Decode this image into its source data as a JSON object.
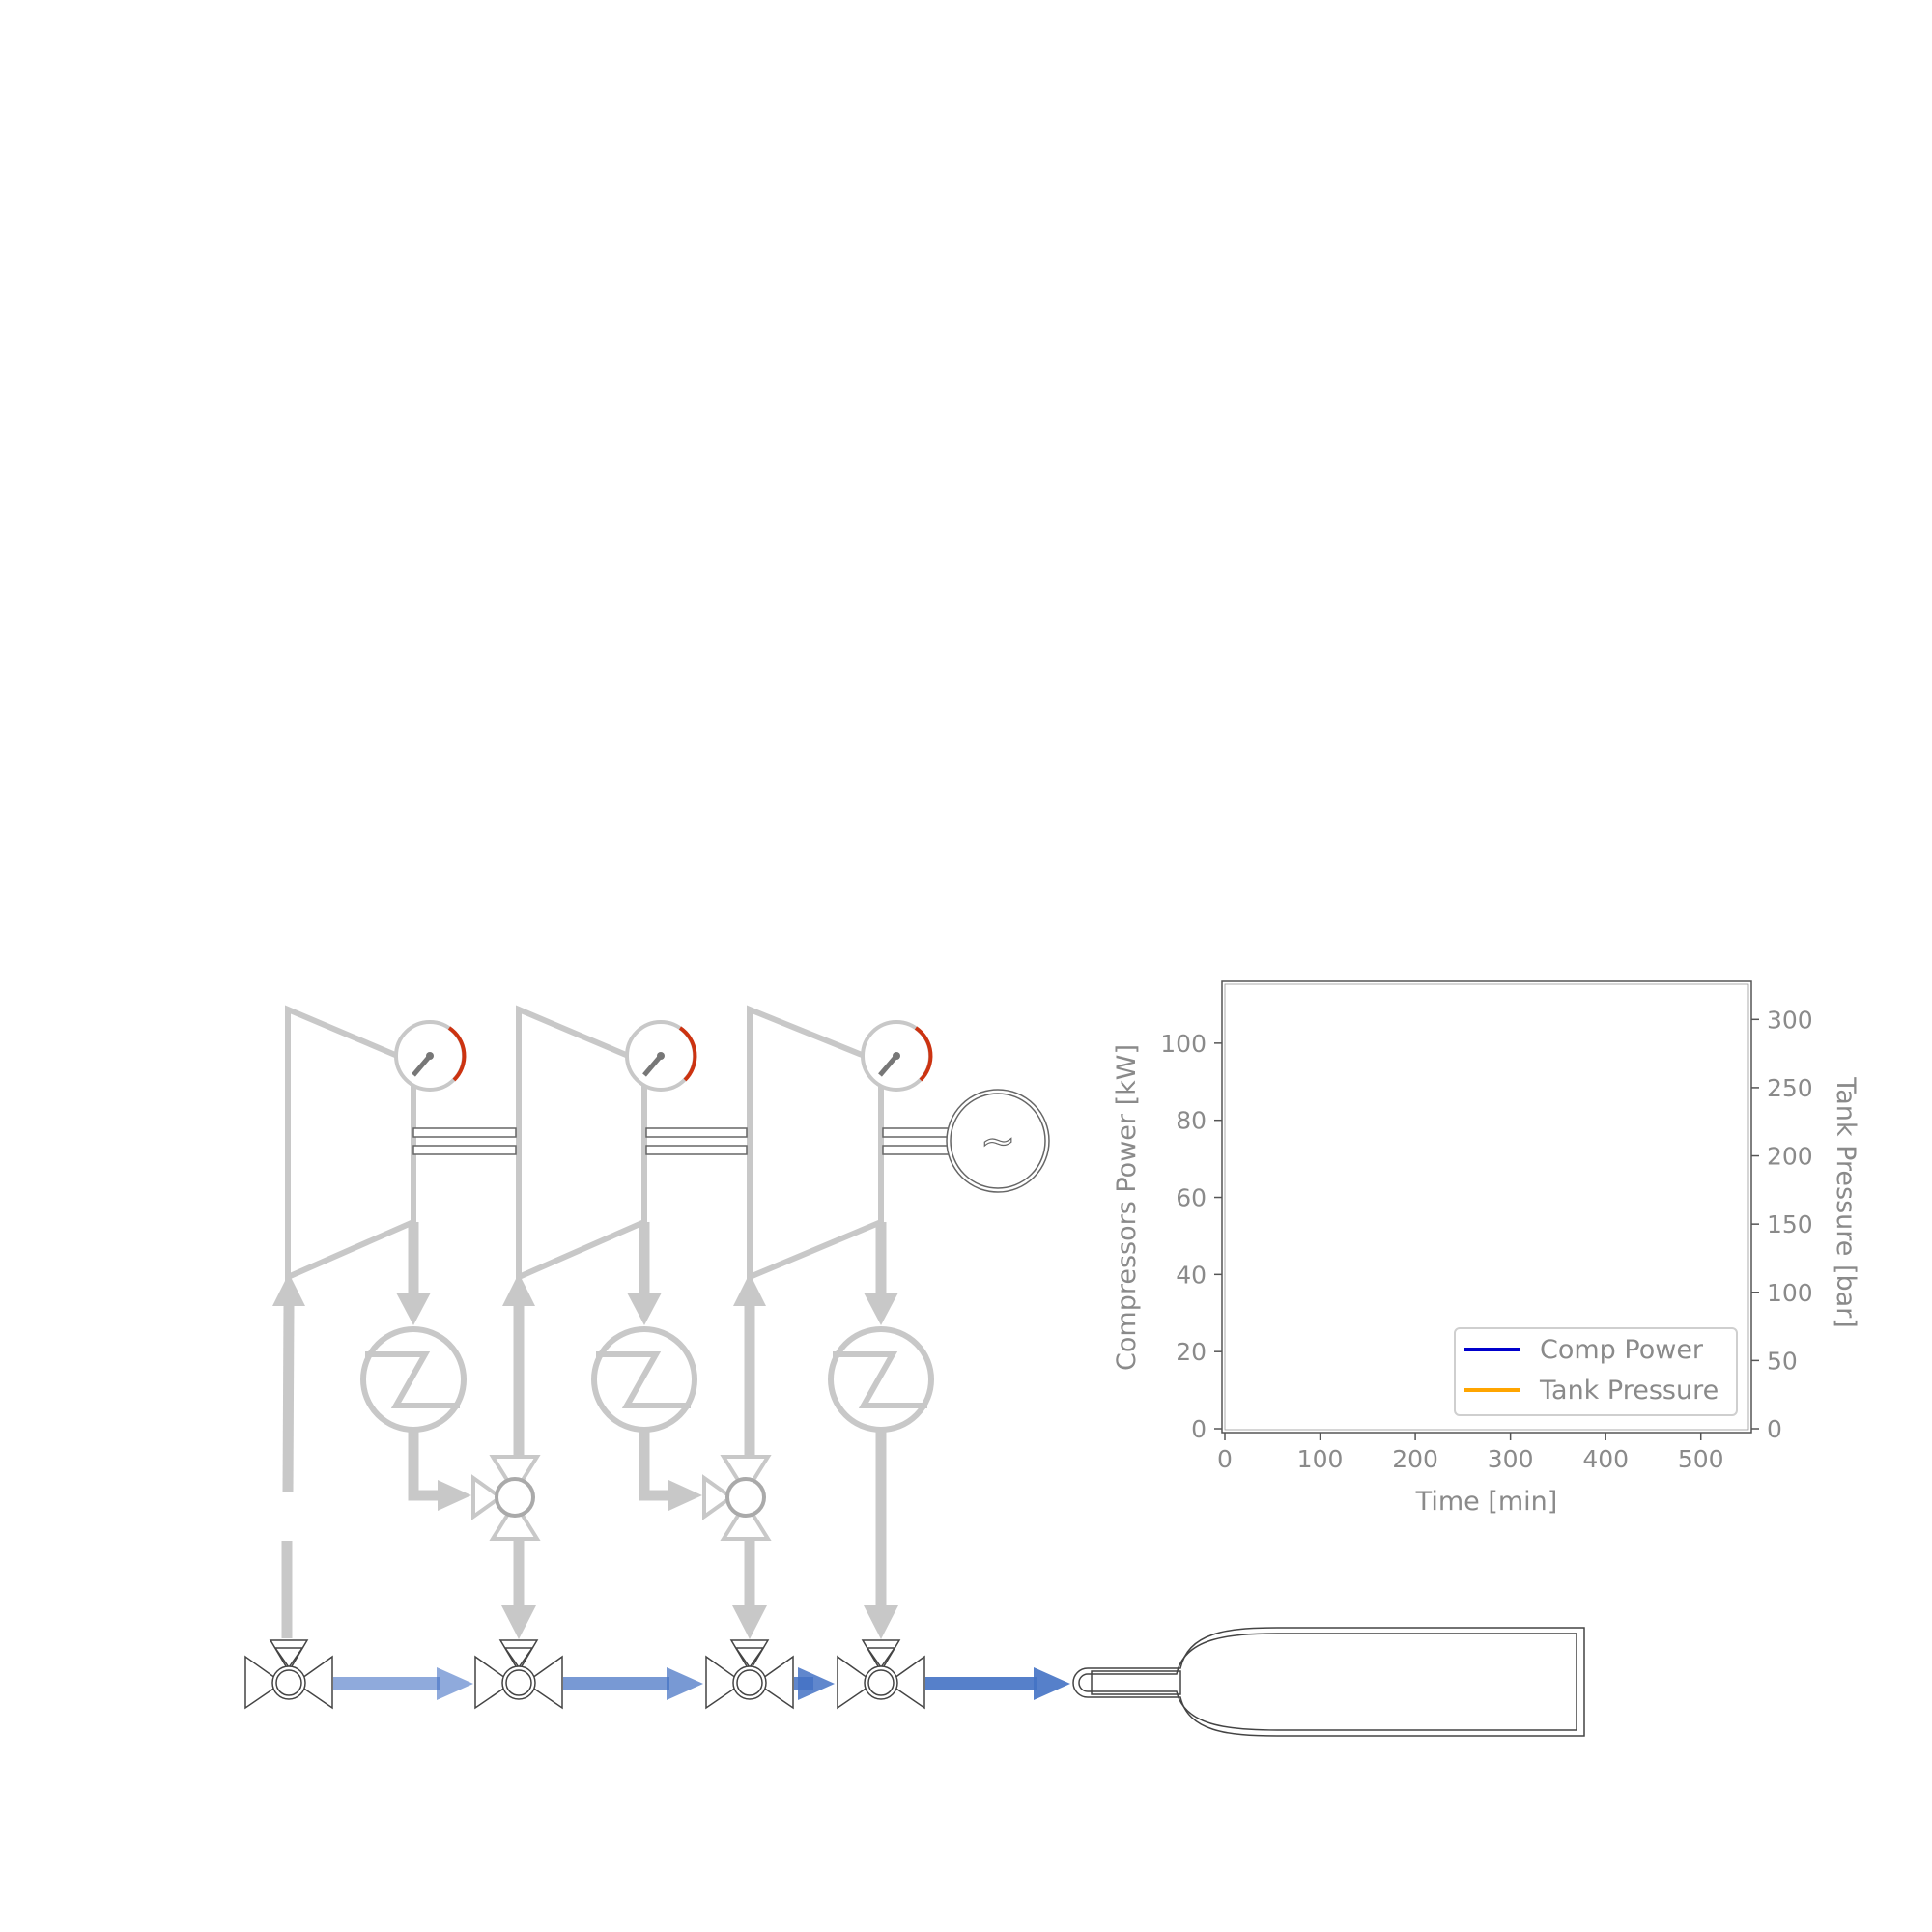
{
  "diagram": {
    "generator_symbol": "~",
    "stages": 3,
    "flow_color": "#4472c4",
    "equipment_color": "#c8c8c8",
    "gauge_accent": "#cc3311"
  },
  "chart_data": {
    "type": "line",
    "title": "",
    "xlabel": "Time [min]",
    "ylabel": "Compressors Power [kW]",
    "y2label": "Tank Pressure [bar]",
    "xlim": [
      0,
      550
    ],
    "ylim": [
      0,
      115
    ],
    "y2lim": [
      0,
      325
    ],
    "xticks": [
      "0",
      "100",
      "200",
      "300",
      "400",
      "500"
    ],
    "yticks": [
      "0",
      "20",
      "40",
      "60",
      "80",
      "100"
    ],
    "y2ticks": [
      "0",
      "50",
      "100",
      "150",
      "200",
      "250",
      "300"
    ],
    "grid": false,
    "legend_position": "lower-right",
    "series": [
      {
        "name": "Comp Power",
        "color": "#0000cc",
        "axis": "left",
        "x": [],
        "y": []
      },
      {
        "name": "Tank Pressure",
        "color": "#ffa500",
        "axis": "right",
        "x": [],
        "y": []
      }
    ]
  }
}
